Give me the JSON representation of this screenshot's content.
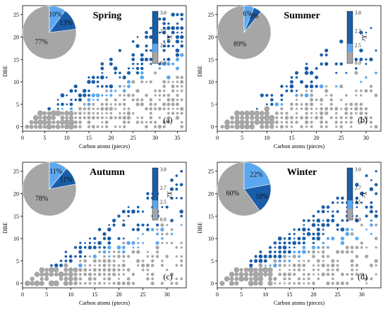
{
  "colors": {
    "gray": "#a6a6a6",
    "light_blue": "#5ca8f0",
    "dark_blue": "#1a5da8"
  },
  "chart_data": [
    {
      "panel": "a",
      "type": "scatter",
      "title": "Spring",
      "panel_label": "(a)",
      "xlabel": "Carbon atoms (pieces)",
      "ylabel": "DBE",
      "xlim": [
        0,
        37
      ],
      "ylim": [
        -1,
        27
      ],
      "xticks": [
        0,
        5,
        10,
        15,
        20,
        25,
        30,
        35
      ],
      "yticks": [
        0,
        5,
        10,
        15,
        20,
        25
      ],
      "xmax_data": 36,
      "legend": {
        "title": "Xc",
        "ticks": [
          "3.0",
          "2.7",
          "2.5",
          "0.0"
        ]
      },
      "pie": {
        "values": [
          77,
          10,
          13
        ],
        "labels": [
          "77%",
          "10%",
          "13%"
        ]
      }
    },
    {
      "panel": "b",
      "type": "scatter",
      "title": "Summer",
      "panel_label": "(b)",
      "xlabel": "Carbon atoms (pieces)",
      "ylabel": "DBE",
      "xlim": [
        0,
        33
      ],
      "ylim": [
        -1,
        27
      ],
      "xticks": [
        0,
        5,
        10,
        15,
        20,
        25,
        30
      ],
      "yticks": [
        0,
        5,
        10,
        15,
        20,
        25
      ],
      "xmax_data": 32,
      "legend": {
        "title": "Xc",
        "ticks": [
          "3.0",
          "2.7",
          "2.5",
          "0.0"
        ]
      },
      "pie": {
        "values": [
          89,
          6,
          5
        ],
        "labels": [
          "89%",
          "6%",
          "5%"
        ]
      }
    },
    {
      "panel": "c",
      "type": "scatter",
      "title": "Autumn",
      "panel_label": "(c)",
      "xlabel": "Carbon atoms (pieces)",
      "ylabel": "DBE",
      "xlim": [
        0,
        34
      ],
      "ylim": [
        -1,
        27
      ],
      "xticks": [
        0,
        5,
        10,
        15,
        20,
        25,
        30
      ],
      "yticks": [
        0,
        5,
        10,
        15,
        20,
        25
      ],
      "xmax_data": 33,
      "legend": {
        "title": "Xc",
        "ticks": [
          "3.0",
          "2.7",
          "2.5",
          "0.0"
        ]
      },
      "pie": {
        "values": [
          78,
          11,
          11
        ],
        "labels": [
          "78%",
          "11%",
          "11%"
        ]
      }
    },
    {
      "panel": "d",
      "type": "scatter",
      "title": "Winter",
      "panel_label": "(d)",
      "xlabel": "Carbon atoms (pieces)",
      "ylabel": "DBE",
      "xlim": [
        0,
        34
      ],
      "ylim": [
        -1,
        27
      ],
      "xticks": [
        0,
        5,
        10,
        15,
        20,
        25,
        30
      ],
      "yticks": [
        0,
        5,
        10,
        15,
        20,
        25
      ],
      "xmax_data": 33,
      "legend": {
        "title": "Xc",
        "ticks": [
          "3.0",
          "2.7",
          "2.5",
          "0.0"
        ]
      },
      "pie": {
        "values": [
          60,
          22,
          18
        ],
        "labels": [
          "60%",
          "22%",
          "18%"
        ]
      }
    }
  ]
}
